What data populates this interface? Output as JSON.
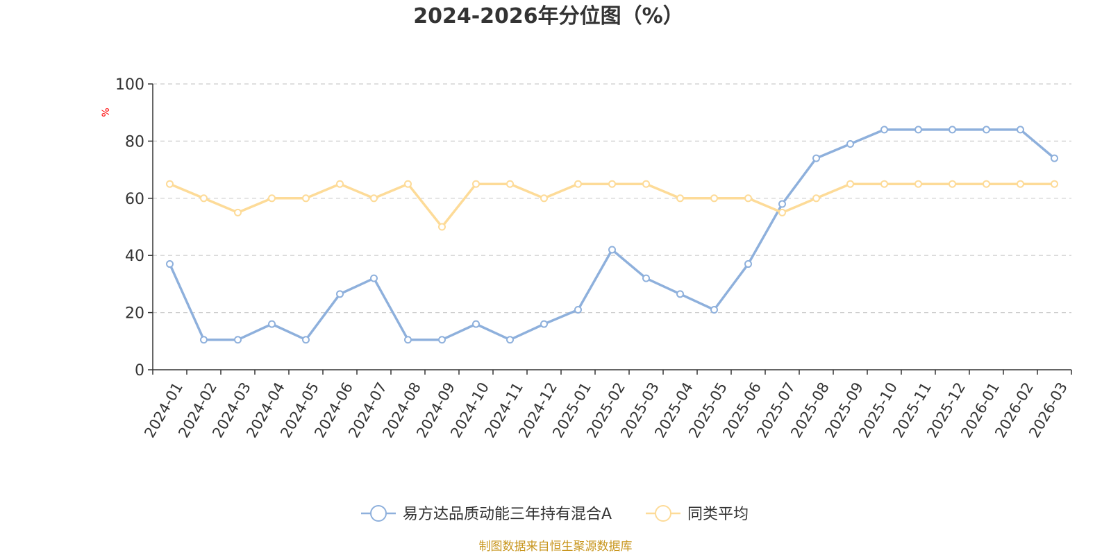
{
  "chart_data": {
    "type": "line",
    "title": "2024-2026年分位图（%）",
    "ylabel": "%",
    "ylim": [
      0,
      100
    ],
    "yticks": [
      0,
      20,
      40,
      60,
      80,
      100
    ],
    "grid": true,
    "legend_position": "bottom",
    "categories": [
      "2024-01",
      "2024-02",
      "2024-03",
      "2024-04",
      "2024-05",
      "2024-06",
      "2024-07",
      "2024-08",
      "2024-09",
      "2024-10",
      "2024-11",
      "2024-12",
      "2025-01",
      "2025-02",
      "2025-03",
      "2025-04",
      "2025-05",
      "2025-06",
      "2025-07",
      "2025-08",
      "2025-09",
      "2025-10",
      "2025-11",
      "2025-12",
      "2026-01",
      "2026-02",
      "2026-03"
    ],
    "series": [
      {
        "name": "易方达品质动能三年持有混合A",
        "color": "#8eb0dc",
        "values": [
          37,
          10.5,
          10.5,
          16,
          10.5,
          26.5,
          32,
          10.5,
          10.5,
          16,
          10.5,
          16,
          21,
          42,
          32,
          26.5,
          21,
          37,
          58,
          74,
          79,
          84,
          84,
          84,
          84,
          84,
          74
        ]
      },
      {
        "name": "同类平均",
        "color": "#fddb98",
        "values": [
          65,
          60,
          55,
          60,
          60,
          65,
          60,
          65,
          50,
          65,
          65,
          60,
          65,
          65,
          65,
          60,
          60,
          60,
          55,
          60,
          65,
          65,
          65,
          65,
          65,
          65,
          65
        ]
      }
    ]
  },
  "source": "制图数据来自恒生聚源数据库"
}
